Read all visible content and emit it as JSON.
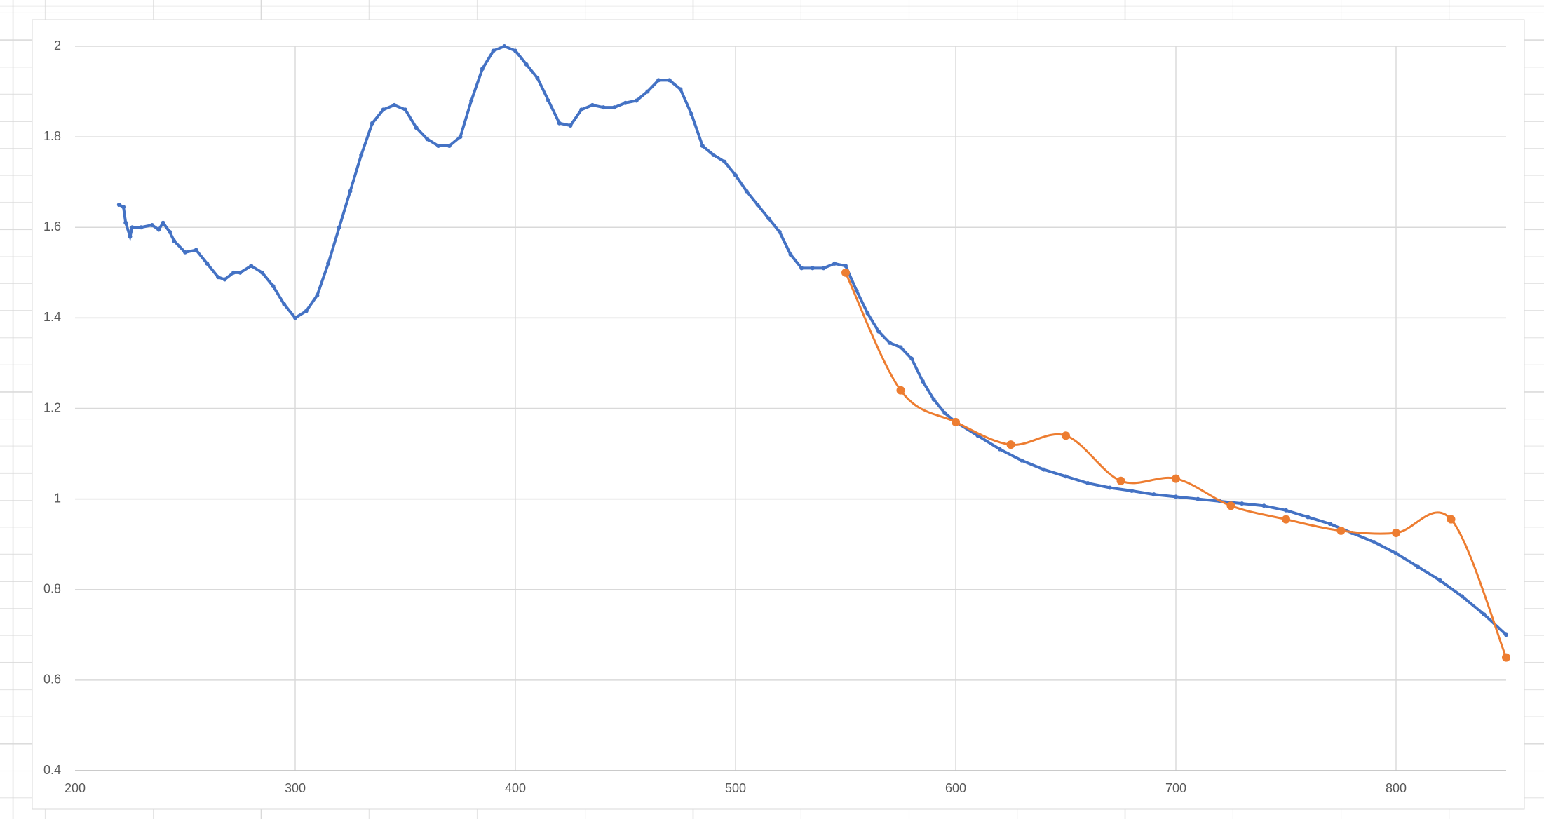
{
  "chart_data": {
    "type": "line",
    "grid": true,
    "xlim": [
      200,
      850
    ],
    "xticks": [
      200,
      300,
      400,
      500,
      600,
      700,
      800
    ],
    "ylim": [
      0.4,
      2
    ],
    "yticks": [
      0.4,
      0.6,
      0.8,
      1,
      1.2,
      1.4,
      1.6,
      1.8,
      2
    ],
    "series": [
      {
        "color": "#4472c4",
        "x": [
          220,
          222,
          223,
          225,
          226,
          230,
          235,
          238,
          240,
          243,
          245,
          250,
          255,
          260,
          265,
          268,
          272,
          275,
          280,
          285,
          290,
          295,
          300,
          305,
          310,
          315,
          320,
          325,
          330,
          335,
          340,
          345,
          350,
          355,
          360,
          365,
          370,
          375,
          380,
          385,
          390,
          395,
          400,
          405,
          410,
          415,
          420,
          425,
          430,
          435,
          440,
          445,
          450,
          455,
          460,
          465,
          470,
          475,
          480,
          485,
          490,
          495,
          500,
          505,
          510,
          515,
          520,
          525,
          530,
          535,
          540,
          545,
          550,
          555,
          560,
          565,
          570,
          575,
          580,
          585,
          590,
          595,
          600,
          610,
          620,
          630,
          640,
          650,
          660,
          670,
          680,
          690,
          700,
          710,
          720,
          730,
          740,
          750,
          760,
          770,
          780,
          790,
          800,
          810,
          820,
          830,
          840,
          850
        ],
        "values": [
          1.65,
          1.645,
          1.61,
          1.58,
          1.6,
          1.6,
          1.605,
          1.595,
          1.61,
          1.59,
          1.57,
          1.545,
          1.55,
          1.52,
          1.49,
          1.485,
          1.5,
          1.5,
          1.515,
          1.5,
          1.47,
          1.43,
          1.4,
          1.415,
          1.45,
          1.52,
          1.6,
          1.68,
          1.76,
          1.83,
          1.86,
          1.87,
          1.86,
          1.82,
          1.795,
          1.78,
          1.78,
          1.8,
          1.88,
          1.95,
          1.99,
          2,
          1.99,
          1.96,
          1.93,
          1.88,
          1.83,
          1.825,
          1.86,
          1.87,
          1.865,
          1.865,
          1.875,
          1.88,
          1.9,
          1.925,
          1.925,
          1.905,
          1.85,
          1.78,
          1.76,
          1.745,
          1.715,
          1.68,
          1.65,
          1.62,
          1.59,
          1.54,
          1.51,
          1.51,
          1.51,
          1.52,
          1.515,
          1.46,
          1.41,
          1.37,
          1.345,
          1.335,
          1.31,
          1.26,
          1.22,
          1.19,
          1.17,
          1.14,
          1.11,
          1.085,
          1.065,
          1.05,
          1.035,
          1.025,
          1.018,
          1.01,
          1.005,
          1,
          0.995,
          0.99,
          0.985,
          0.975,
          0.96,
          0.945,
          0.925,
          0.905,
          0.88,
          0.85,
          0.82,
          0.785,
          0.745,
          0.7
        ]
      },
      {
        "color": "#ed7d31",
        "smooth": true,
        "x": [
          550,
          575,
          600,
          625,
          650,
          675,
          700,
          725,
          750,
          775,
          800,
          825,
          850
        ],
        "values": [
          1.5,
          1.24,
          1.17,
          1.12,
          1.14,
          1.04,
          1.045,
          0.985,
          0.955,
          0.93,
          0.925,
          0.955,
          0.65
        ]
      }
    ]
  }
}
